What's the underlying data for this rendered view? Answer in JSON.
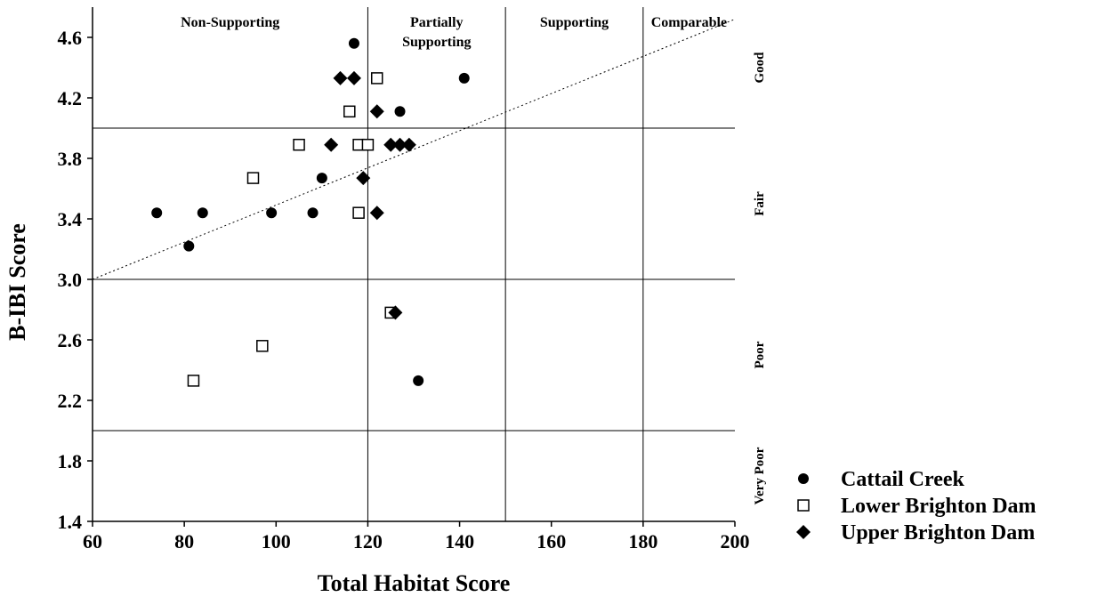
{
  "chart_data": {
    "type": "scatter",
    "xlabel": "Total Habitat Score",
    "ylabel": "B-IBI Score",
    "xlim": [
      60,
      200
    ],
    "ylim": [
      1.4,
      4.8
    ],
    "x_ticks": [
      "60",
      "80",
      "100",
      "120",
      "140",
      "160",
      "180",
      "200"
    ],
    "y_ticks": [
      "1.4",
      "1.8",
      "2.2",
      "2.6",
      "3.0",
      "3.4",
      "3.8",
      "4.2",
      "4.6"
    ],
    "x_tick_values": [
      60,
      80,
      100,
      120,
      140,
      160,
      180,
      200
    ],
    "y_tick_values": [
      1.4,
      1.8,
      2.2,
      2.6,
      3.0,
      3.4,
      3.8,
      4.2,
      4.6
    ],
    "vertical_dividers": [
      120,
      150,
      180
    ],
    "horizontal_dividers": [
      2.0,
      3.0,
      4.0
    ],
    "habitat_categories": [
      {
        "label_lines": [
          "Non-Supporting"
        ],
        "x_range": [
          60,
          120
        ]
      },
      {
        "label_lines": [
          "Partially",
          "Supporting"
        ],
        "x_range": [
          120,
          150
        ]
      },
      {
        "label_lines": [
          "Supporting"
        ],
        "x_range": [
          150,
          180
        ]
      },
      {
        "label_lines": [
          "Comparable"
        ],
        "x_range": [
          180,
          200
        ]
      }
    ],
    "ibi_ratings": [
      {
        "label": "Good",
        "y_range": [
          4.0,
          4.8
        ]
      },
      {
        "label": "Fair",
        "y_range": [
          3.0,
          4.0
        ]
      },
      {
        "label": "Poor",
        "y_range": [
          2.0,
          3.0
        ]
      },
      {
        "label": "Very Poor",
        "y_range": [
          1.4,
          2.0
        ]
      }
    ],
    "trendline": {
      "x": [
        60,
        200
      ],
      "y": [
        3.0,
        4.72
      ],
      "style": "dotted"
    },
    "series": [
      {
        "name": "Cattail Creek",
        "marker": "filled-circle",
        "points": [
          {
            "x": 74,
            "y": 3.44
          },
          {
            "x": 84,
            "y": 3.44
          },
          {
            "x": 81,
            "y": 3.22
          },
          {
            "x": 99,
            "y": 3.44
          },
          {
            "x": 108,
            "y": 3.44
          },
          {
            "x": 110,
            "y": 3.67
          },
          {
            "x": 117,
            "y": 4.56
          },
          {
            "x": 127,
            "y": 4.11
          },
          {
            "x": 141,
            "y": 4.33
          },
          {
            "x": 131,
            "y": 2.33
          }
        ]
      },
      {
        "name": "Lower Brighton Dam",
        "marker": "open-square",
        "points": [
          {
            "x": 82,
            "y": 2.33
          },
          {
            "x": 97,
            "y": 2.56
          },
          {
            "x": 95,
            "y": 3.67
          },
          {
            "x": 105,
            "y": 3.89
          },
          {
            "x": 116,
            "y": 4.11
          },
          {
            "x": 118,
            "y": 3.89
          },
          {
            "x": 120,
            "y": 3.89
          },
          {
            "x": 118,
            "y": 3.44
          },
          {
            "x": 122,
            "y": 4.33
          },
          {
            "x": 125,
            "y": 2.78
          }
        ]
      },
      {
        "name": "Upper Brighton Dam",
        "marker": "filled-diamond",
        "points": [
          {
            "x": 114,
            "y": 4.33
          },
          {
            "x": 117,
            "y": 4.33
          },
          {
            "x": 112,
            "y": 3.89
          },
          {
            "x": 122,
            "y": 4.11
          },
          {
            "x": 119,
            "y": 3.67
          },
          {
            "x": 122,
            "y": 3.44
          },
          {
            "x": 125,
            "y": 3.89
          },
          {
            "x": 127,
            "y": 3.89
          },
          {
            "x": 129,
            "y": 3.89
          },
          {
            "x": 126,
            "y": 2.78
          }
        ]
      }
    ],
    "legend_position": "bottom-right"
  }
}
